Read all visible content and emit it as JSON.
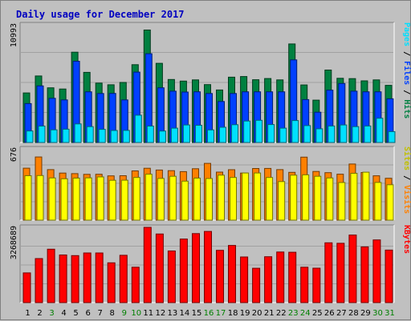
{
  "chart_data": {
    "type": "bar",
    "title": "Daily usage for December 2017",
    "categories": [
      "1",
      "2",
      "3",
      "4",
      "5",
      "6",
      "7",
      "8",
      "9",
      "10",
      "11",
      "12",
      "13",
      "14",
      "15",
      "16",
      "17",
      "18",
      "19",
      "20",
      "21",
      "22",
      "23",
      "24",
      "25",
      "26",
      "27",
      "28",
      "29",
      "30",
      "31"
    ],
    "weekend_days": [
      "3",
      "9",
      "10",
      "16",
      "17",
      "23",
      "24",
      "30",
      "31"
    ],
    "panels": [
      {
        "name": "hits-files-pages",
        "y_max_label": "10993",
        "ylim": [
          0,
          10993
        ],
        "axis_label": "Pages / Files / Hits",
        "series": [
          {
            "name": "Hits",
            "color": "#008040",
            "values": [
              4536,
              6088,
              5006,
              4896,
              8266,
              6422,
              5438,
              5286,
              5496,
              7120,
              10300,
              7251,
              5767,
              5620,
              5731,
              5296,
              4811,
              5981,
              6040,
              5747,
              5855,
              5731,
              9020,
              5267,
              3879,
              6632,
              5876,
              5848,
              5640,
              5731,
              5236
            ]
          },
          {
            "name": "Files",
            "color": "#0040ff",
            "values": [
              3559,
              5183,
              4044,
              3900,
              7438,
              4638,
              4487,
              4496,
              3900,
              6440,
              8125,
              5006,
              4700,
              4617,
              4638,
              4488,
              3750,
              4488,
              4637,
              4637,
              4637,
              4637,
              7564,
              3930,
              2767,
              4790,
              5400,
              4700,
              4639,
              4637,
              4001
            ]
          },
          {
            "name": "Pages",
            "color": "#00e0ff",
            "values": [
              1052,
              1505,
              1155,
              1213,
              1700,
              1450,
              1200,
              1100,
              1109,
              2500,
              1505,
              1051,
              1312,
              1602,
              1574,
              1149,
              1394,
              1627,
              1961,
              2030,
              1640,
              1309,
              2005,
              1545,
              1255,
              1507,
              1602,
              1450,
              1510,
              2217,
              1000
            ]
          }
        ]
      },
      {
        "name": "visits-sites",
        "y_max_label": "676",
        "ylim": [
          0,
          676
        ],
        "axis_label": "Sites / Visits",
        "series": [
          {
            "name": "Visits",
            "color": "#ff8000",
            "values": [
              477,
              580,
              464,
              432,
              427,
              420,
              421,
              406,
              408,
              452,
              476,
              460,
              454,
              445,
              472,
              521,
              441,
              463,
              432,
              474,
              475,
              464,
              439,
              578,
              447,
              436,
              422,
              515,
              437,
              407,
              384
            ]
          },
          {
            "name": "Sites",
            "color": "#ffff00",
            "values": [
              408,
              409,
              387,
              380,
              386,
              388,
              397,
              366,
              367,
              392,
              422,
              383,
              403,
              358,
              386,
              382,
              413,
              392,
              433,
              433,
              392,
              354,
              413,
              416,
              403,
              387,
              345,
              430,
              440,
              346,
              325
            ]
          }
        ]
      },
      {
        "name": "kbytes",
        "y_max_label": "3268689",
        "ylim": [
          0,
          3268689
        ],
        "axis_label": "KBytes",
        "series": [
          {
            "name": "KBytes",
            "color": "#ff0000",
            "values": [
              1291800,
              1913940,
              2318770,
              2068080,
              2040950,
              2154850,
              2154851,
              1729850,
              2056800,
              1536180,
              3268689,
              2980520,
              2241890,
              2759440,
              2996590,
              3090660,
              2270640,
              2481680,
              1983170,
              1491170,
              1992120,
              2197560,
              2187450,
              1535360,
              1495960,
              2597890,
              2577480,
              2936550,
              2419180,
              2724120,
              2279920
            ]
          }
        ]
      }
    ],
    "grid": true
  }
}
